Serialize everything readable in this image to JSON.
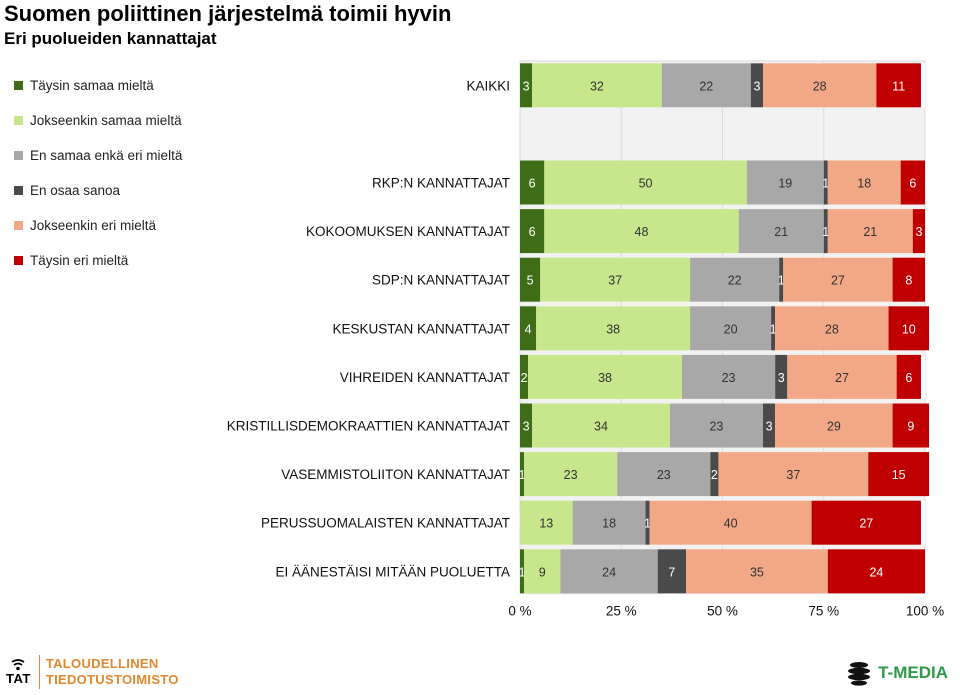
{
  "header": {
    "title": "Suomen poliittinen järjestelmä toimii hyvin",
    "subtitle": "Eri puolueiden kannattajat"
  },
  "footer": {
    "left_logo_text": "TAT",
    "left_org_line1": "TALOUDELLINEN",
    "left_org_line2": "TIEDOTUSTOIMISTO",
    "right_org": "T-MEDIA"
  },
  "chart_data": {
    "type": "bar",
    "orientation": "horizontal",
    "stacked": true,
    "percent_axis": true,
    "xlim": [
      0,
      100
    ],
    "x_ticks": [
      "0 %",
      "25 %",
      "50 %",
      "75 %",
      "100 %"
    ],
    "legend_position": "left",
    "categories": [
      "KAIKKI",
      "",
      "RKP:N KANNATTAJAT",
      "KOKOOMUKSEN KANNATTAJAT",
      "SDP:N KANNATTAJAT",
      "KESKUSTAN KANNATTAJAT",
      "VIHREIDEN KANNATTAJAT",
      "KRISTILLISDEMOKRAATTIEN KANNATTAJAT",
      "VASEMMISTOLIITON KANNATTAJAT",
      "PERUSSUOMALAISTEN KANNATTAJAT",
      "EI ÄÄNESTÄISI MITÄÄN PUOLUETTA"
    ],
    "series": [
      {
        "name": "Täysin samaa mieltä",
        "color": "#3f6d17",
        "values": [
          3,
          null,
          6,
          6,
          5,
          4,
          2,
          3,
          1,
          0,
          1
        ]
      },
      {
        "name": "Jokseenkin samaa mieltä",
        "color": "#c8e68c",
        "values": [
          32,
          null,
          50,
          48,
          37,
          38,
          38,
          34,
          23,
          13,
          9
        ]
      },
      {
        "name": "En samaa enkä eri mieltä",
        "color": "#a8a8a8",
        "values": [
          22,
          null,
          19,
          21,
          22,
          20,
          23,
          23,
          23,
          18,
          24
        ]
      },
      {
        "name": "En osaa sanoa",
        "color": "#4a4a4a",
        "values": [
          3,
          null,
          1,
          1,
          1,
          1,
          3,
          3,
          2,
          1,
          7
        ]
      },
      {
        "name": "Jokseenkin eri mieltä",
        "color": "#f2a786",
        "values": [
          28,
          null,
          18,
          21,
          27,
          28,
          27,
          29,
          37,
          40,
          35
        ]
      },
      {
        "name": "Täysin eri mieltä",
        "color": "#c00000",
        "values": [
          11,
          null,
          6,
          3,
          8,
          10,
          6,
          9,
          15,
          27,
          24
        ]
      }
    ]
  }
}
